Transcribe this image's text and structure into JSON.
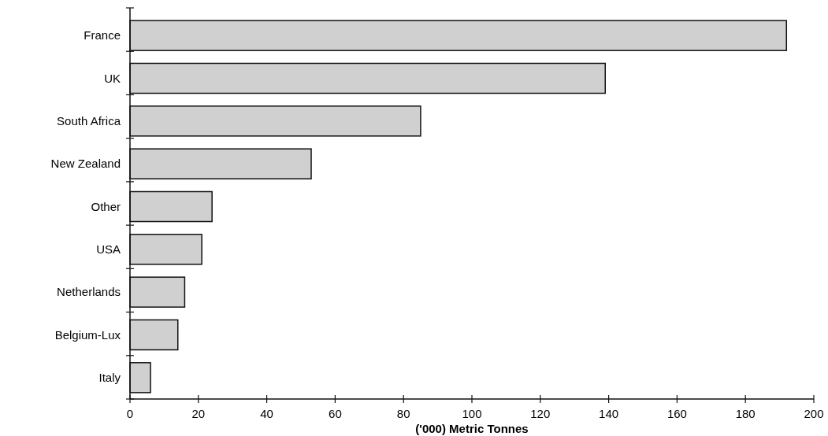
{
  "chart_data": {
    "type": "bar",
    "orientation": "horizontal",
    "xlabel": "('000) Metric Tonnes",
    "categories": [
      "France",
      "UK",
      "South Africa",
      "New Zealand",
      "Other",
      "USA",
      "Netherlands",
      "Belgium-Lux",
      "Italy"
    ],
    "values": [
      192,
      139,
      85,
      53,
      24,
      21,
      16,
      14,
      6
    ],
    "color": "#d0d0d0",
    "xlim": [
      0,
      200
    ],
    "xticks": [
      0,
      20,
      40,
      60,
      80,
      100,
      120,
      140,
      160,
      180,
      200
    ],
    "grid": false
  }
}
